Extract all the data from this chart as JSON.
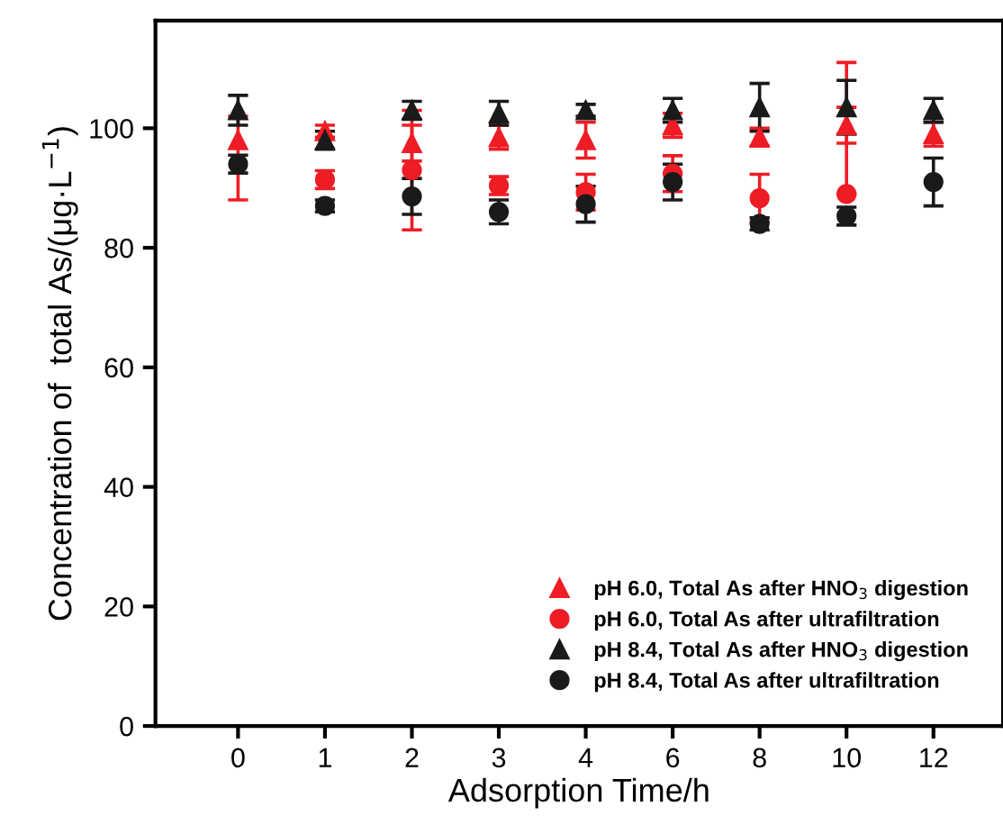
{
  "chart_data": {
    "type": "scatter",
    "xlabel": "Adsorption Time/h",
    "ylabel": "Concentration of  total As/(μg·L$^{−1}$)",
    "categories": [
      "0",
      "1",
      "2",
      "3",
      "4",
      "6",
      "8",
      "10",
      "12"
    ],
    "ylim": [
      0,
      118
    ],
    "yticks": [
      0,
      20,
      40,
      60,
      80,
      100
    ],
    "legend": "bottom right",
    "series": [
      {
        "name": "pH 6.0, Total As after HNO$_{3}$ digestion",
        "color": "#ee1c25",
        "marker": "triangle",
        "values": [
          98,
          99.5,
          97.5,
          98.5,
          98,
          100.5,
          98.5,
          100.5,
          99
        ],
        "errors": [
          [
            88,
            102
          ],
          1,
          3,
          2,
          3,
          2,
          1.5,
          3,
          2
        ]
      },
      {
        "name": "pH 6.0, Total As after ultrafiltration",
        "color": "#ee1c25",
        "marker": "circle",
        "values": [
          null,
          91.4,
          93,
          90.4,
          89.3,
          92.4,
          88.3,
          89,
          null
        ],
        "errors": [
          null,
          1.5,
          10,
          1.5,
          3,
          3,
          4,
          [
            89,
            111
          ],
          null
        ]
      },
      {
        "name": "pH 8.4, Total As after HNO$_{3}$ digestion",
        "color": "#1a1a1a",
        "marker": "triangle",
        "values": [
          103,
          98,
          103,
          102.5,
          103,
          103,
          103.5,
          103.5,
          103
        ],
        "errors": [
          2.5,
          1.5,
          1.5,
          2,
          1,
          2,
          4,
          4.5,
          2
        ]
      },
      {
        "name": "pH 8.4, Total As after ultrafiltration",
        "color": "#1a1a1a",
        "marker": "circle",
        "values": [
          94,
          87,
          88.6,
          86,
          87.3,
          91,
          84,
          85.3,
          91
        ],
        "errors": [
          1.5,
          1,
          3,
          2,
          3,
          3,
          1,
          1.5,
          4
        ]
      }
    ]
  }
}
